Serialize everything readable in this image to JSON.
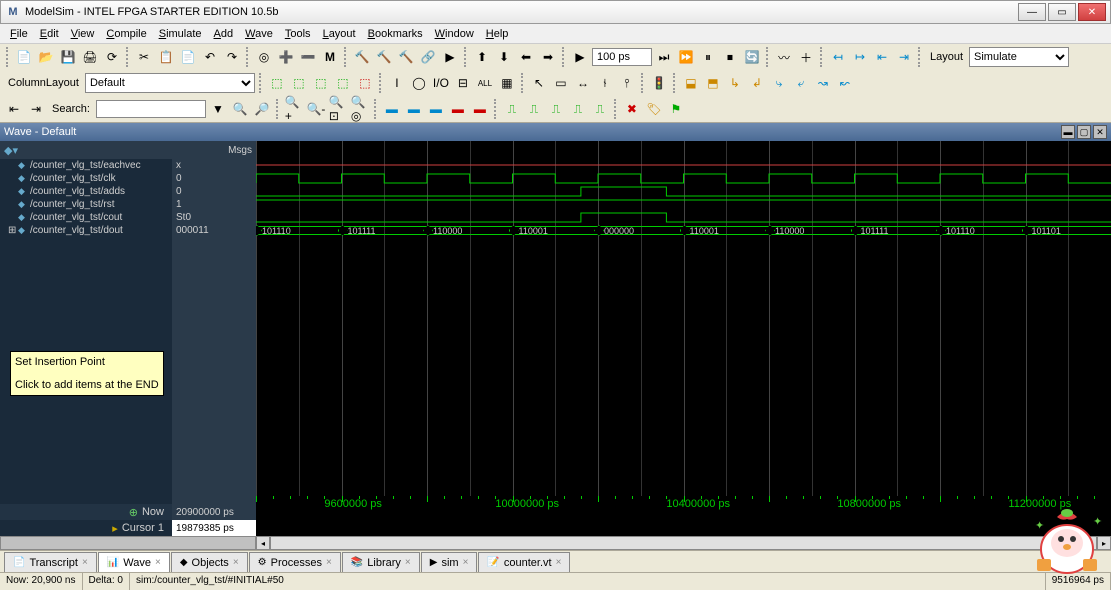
{
  "window": {
    "title": "ModelSim - INTEL FPGA STARTER EDITION 10.5b",
    "icon": "M"
  },
  "menu": [
    "File",
    "Edit",
    "View",
    "Compile",
    "Simulate",
    "Add",
    "Wave",
    "Tools",
    "Layout",
    "Bookmarks",
    "Window",
    "Help"
  ],
  "toolbar": {
    "run_value": "100 ps",
    "layout_label": "Layout",
    "layout_value": "Simulate",
    "column_layout_label": "ColumnLayout",
    "column_layout_value": "Default",
    "search_label": "Search:"
  },
  "wave_title": "Wave - Default",
  "msgs_header": "Msgs",
  "signals": [
    {
      "name": "/counter_vlg_tst/eachvec",
      "val": "x",
      "type": "x",
      "color": "#d04040"
    },
    {
      "name": "/counter_vlg_tst/clk",
      "val": "0",
      "type": "clock",
      "color": "#00cc00"
    },
    {
      "name": "/counter_vlg_tst/adds",
      "val": "0",
      "type": "pulse",
      "color": "#00cc00"
    },
    {
      "name": "/counter_vlg_tst/rst",
      "val": "1",
      "type": "high",
      "color": "#00cc00"
    },
    {
      "name": "/counter_vlg_tst/cout",
      "val": "St0",
      "type": "step",
      "color": "#00cc00"
    },
    {
      "name": "/counter_vlg_tst/dout",
      "val": "000011",
      "type": "bus",
      "expand": true
    }
  ],
  "bus_values": [
    "101110",
    "101111",
    "110000",
    "110001",
    "000000",
    "110001",
    "110000",
    "101111",
    "101110",
    "101101"
  ],
  "tooltip": {
    "line1": "Set Insertion Point",
    "line2": "Click to add items at the END"
  },
  "footer": {
    "now_label": "Now",
    "now_value": "20900000 ps",
    "cursor_label": "Cursor 1",
    "cursor_value": "19879385 ps",
    "ticks": [
      {
        "pos": 8,
        "label": "9600000 ps"
      },
      {
        "pos": 28,
        "label": "10000000 ps"
      },
      {
        "pos": 48,
        "label": "10400000 ps"
      },
      {
        "pos": 68,
        "label": "10800000 ps"
      },
      {
        "pos": 88,
        "label": "11200000 ps"
      }
    ]
  },
  "tabs": [
    {
      "label": "Transcript",
      "icon": "📄",
      "active": false
    },
    {
      "label": "Wave",
      "icon": "📊",
      "active": true
    },
    {
      "label": "Objects",
      "icon": "◆",
      "active": false
    },
    {
      "label": "Processes",
      "icon": "⚙",
      "active": false
    },
    {
      "label": "Library",
      "icon": "📚",
      "active": false
    },
    {
      "label": "sim",
      "icon": "▶",
      "active": false
    },
    {
      "label": "counter.vt",
      "icon": "📝",
      "active": false
    }
  ],
  "status": {
    "now": "Now: 20,900 ns",
    "delta": "Delta: 0",
    "sim": "sim:/counter_vlg_tst/#INITIAL#50",
    "right": "9516964 ps"
  },
  "grid": {
    "count": 20
  }
}
